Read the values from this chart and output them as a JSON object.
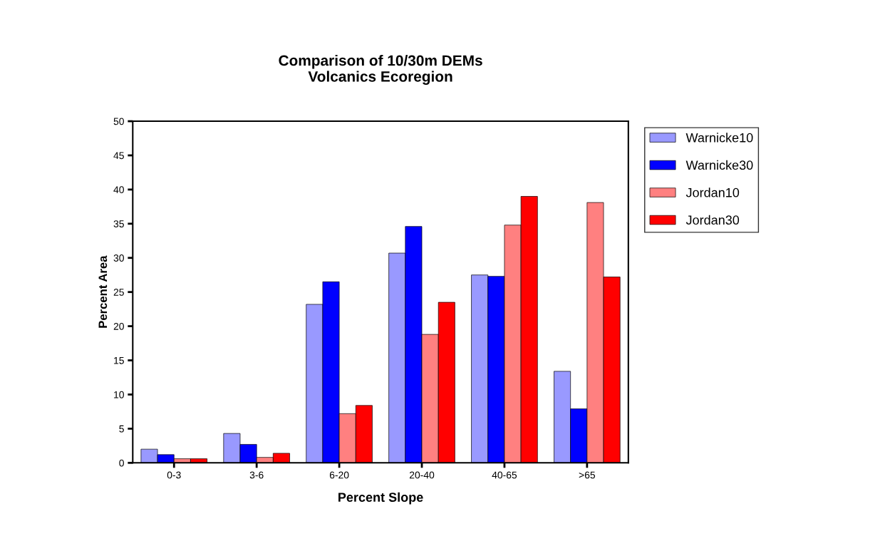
{
  "chart_data": {
    "type": "bar",
    "title": "Comparison of 10/30m DEMs\nVolcanics Ecoregion",
    "xlabel": "Percent Slope",
    "ylabel": "Percent Area",
    "categories": [
      "0-3",
      "3-6",
      "6-20",
      "20-40",
      "40-65",
      ">65"
    ],
    "series": [
      {
        "name": "Warnicke10",
        "color": "#9999ff",
        "values": [
          2.0,
          4.3,
          23.2,
          30.7,
          27.5,
          13.4
        ]
      },
      {
        "name": "Warnicke30",
        "color": "#0000ff",
        "values": [
          1.2,
          2.7,
          26.5,
          34.6,
          27.3,
          7.9
        ]
      },
      {
        "name": "Jordan10",
        "color": "#ff8080",
        "values": [
          0.6,
          0.8,
          7.2,
          18.8,
          34.8,
          38.1
        ]
      },
      {
        "name": "Jordan30",
        "color": "#ff0000",
        "values": [
          0.6,
          1.4,
          8.4,
          23.5,
          39.0,
          27.2
        ]
      }
    ],
    "ylim": [
      0,
      50
    ],
    "yticks": [
      0,
      5,
      10,
      15,
      20,
      25,
      30,
      35,
      40,
      45,
      50
    ],
    "grid": false,
    "legend": "right"
  }
}
